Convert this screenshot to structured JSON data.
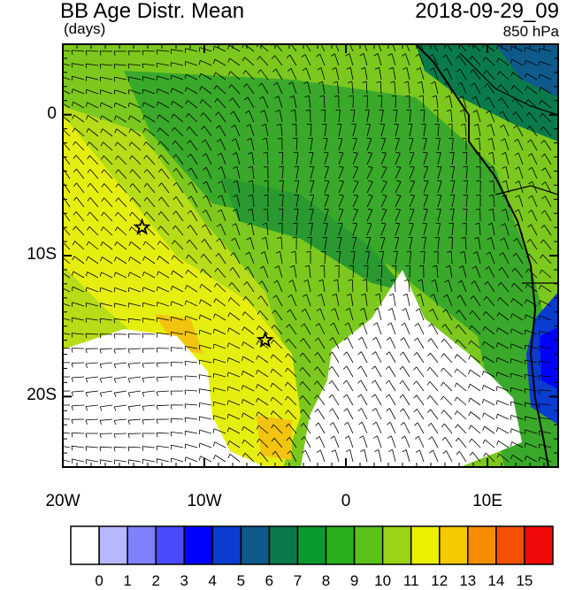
{
  "header": {
    "title": "BB Age Distr. Mean",
    "units": "(days)",
    "datetime": "2018-09-29_09",
    "level": "850 hPa"
  },
  "map": {
    "lon_range": [
      -20,
      15
    ],
    "lat_range": [
      -25,
      5
    ],
    "x_ticks": [
      {
        "lon": -20,
        "label": "20W"
      },
      {
        "lon": -10,
        "label": "10W"
      },
      {
        "lon": 0,
        "label": "0"
      },
      {
        "lon": 10,
        "label": "10E"
      }
    ],
    "y_ticks": [
      {
        "lat": 0,
        "label": "0"
      },
      {
        "lat": -10,
        "label": "10S"
      },
      {
        "lat": -20,
        "label": "20S"
      }
    ],
    "markers": [
      {
        "name": "star-marker-1",
        "lon": -14.4,
        "lat": -8.0
      },
      {
        "name": "star-marker-2",
        "lon": -5.7,
        "lat": -16.0
      }
    ],
    "land_color": "#1a1a1a"
  },
  "colorbar": {
    "labels": [
      "0",
      "1",
      "2",
      "3",
      "4",
      "5",
      "6",
      "7",
      "8",
      "9",
      "10",
      "11",
      "12",
      "13",
      "14",
      "15"
    ],
    "colors": [
      "#ffffff",
      "#b7b7ff",
      "#8080ff",
      "#4a4aff",
      "#0000ff",
      "#0a3cd0",
      "#0e5a8a",
      "#0a7a4a",
      "#0a9a30",
      "#2ab01a",
      "#5ac21a",
      "#9ad414",
      "#eaf000",
      "#f5c800",
      "#f58c00",
      "#f55000",
      "#f00a0a"
    ]
  }
}
